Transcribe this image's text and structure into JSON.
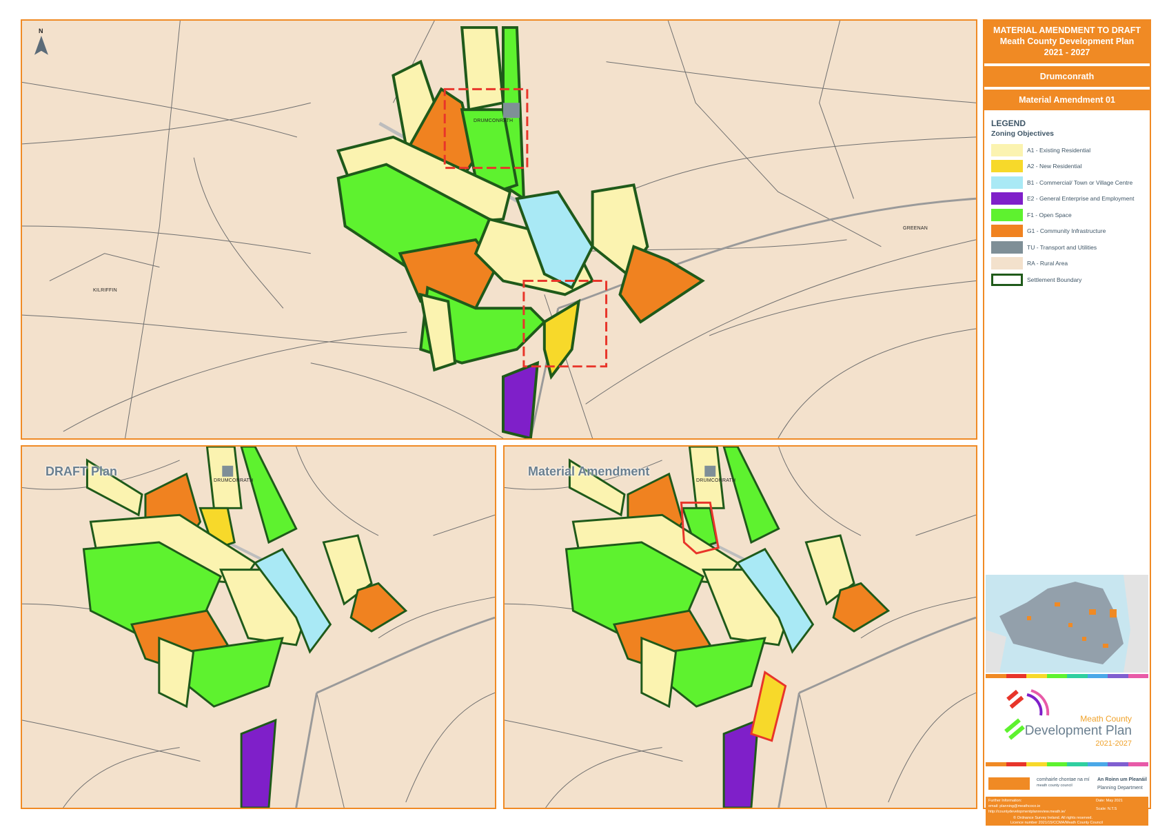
{
  "title": {
    "line1": "MATERIAL AMENDMENT TO DRAFT",
    "line2": "Meath County Development Plan",
    "line3": "2021 - 2027"
  },
  "settlement": "Drumconrath",
  "amendment": "Material Amendment 01",
  "legend": {
    "heading": "LEGEND",
    "subheading": "Zoning Objectives",
    "items": [
      {
        "label": "A1 - Existing Residential",
        "color": "#fbf3b0"
      },
      {
        "label": "A2 - New Residential",
        "color": "#f7d92a"
      },
      {
        "label": "B1 - Commercial/ Town or Village Centre",
        "color": "#a9e9f5"
      },
      {
        "label": "E2 - General Enterprise and Employment",
        "color": "#7f1fc9"
      },
      {
        "label": "F1 - Open Space",
        "color": "#5ef22f"
      },
      {
        "label": "G1 - Community Infrastructure",
        "color": "#f08220"
      },
      {
        "label": "TU - Transport and Utilities",
        "color": "#7f8f97"
      },
      {
        "label": "RA - Rural Area",
        "color": "#f3e1cc"
      },
      {
        "label": "Settlement Boundary",
        "color": "#1f5a1a"
      }
    ]
  },
  "map_labels": {
    "north": "N",
    "drumconrath": "DRUMCONRATH",
    "greenan": "GREENAN",
    "kilriffin": "KILRIFFIN"
  },
  "panels": {
    "draft": "DRAFT Plan",
    "amendment": "Material Amendment"
  },
  "logo": {
    "line1": "Meath County",
    "line2": "Development Plan",
    "line3": "2021-2027"
  },
  "council": {
    "name_irish": "comhairle chontae na mí",
    "name_english": "meath county council",
    "dept_irish": "An Roinn um Pleanáil",
    "dept_english": "Planning Department"
  },
  "footer": {
    "further": "Further Information:",
    "email": "email: planning@meathcoco.ie",
    "url": "http://countydevelopmentplanreview.meath.ie/",
    "date": "Date: May 2021",
    "scale": "Scale: N.T.S",
    "copyright": "© Ordnance Survey Ireland. All rights reserved.",
    "licence": "Licence number 2021/15/CCMA/Meath County Council"
  },
  "colors": {
    "accent": "#f08a24",
    "boundary": "#1f5a1a",
    "amendment_outline": "#e8352a"
  }
}
